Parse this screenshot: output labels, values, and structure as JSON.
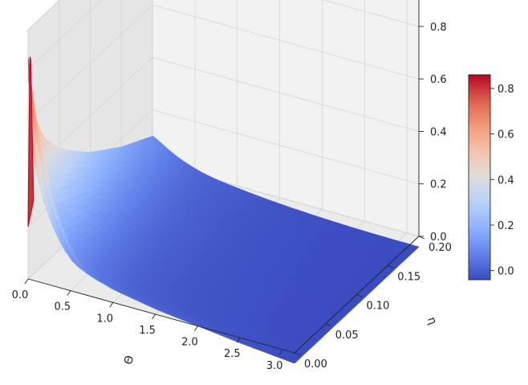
{
  "chart_data": {
    "type": "surface",
    "colormap": "coolwarm",
    "title": "",
    "xlabel": "Θ",
    "ylabel": "η",
    "zlabel": "",
    "xlim": [
      0.0,
      3.14
    ],
    "ylim": [
      0.0,
      0.2
    ],
    "zlim": [
      0.0,
      0.95
    ],
    "x_ticks": [
      "0.0",
      "0.5",
      "1.0",
      "1.5",
      "2.0",
      "2.5",
      "3.0"
    ],
    "y_ticks": [
      "0.00",
      "0.05",
      "0.10",
      "0.15",
      "0.20"
    ],
    "z_ticks": [
      "0.0",
      "0.2",
      "0.4",
      "0.6",
      "0.8"
    ],
    "colorbar": {
      "min": -0.04,
      "max": 0.86,
      "ticks": [
        "0.0",
        "0.2",
        "0.4",
        "0.6",
        "0.8"
      ]
    },
    "surface_profile": {
      "theta": [
        0.0,
        0.02,
        0.05,
        0.1,
        0.2,
        0.35,
        0.6,
        1.0,
        1.5,
        2.0,
        2.5,
        3.14
      ],
      "eta": [
        0.0,
        0.002,
        0.005,
        0.01,
        0.02,
        0.035,
        0.05,
        0.075,
        0.1,
        0.15,
        0.2
      ],
      "edge_theta0_vs_eta": [
        0.84,
        0.55,
        0.47,
        0.46,
        0.45,
        0.42,
        0.38,
        0.32,
        0.26,
        0.17,
        0.1
      ],
      "edge_eta_max_vs_theta": [
        0.1,
        0.07,
        0.05,
        0.04,
        0.025,
        0.015,
        0.005,
        0.0,
        -0.01,
        -0.02,
        -0.03,
        -0.04
      ],
      "edge_eta0_vs_theta": [
        0.84,
        0.45,
        0.36,
        0.28,
        0.2,
        0.14,
        0.09,
        0.05,
        0.02,
        0.0,
        -0.02,
        -0.04
      ],
      "edge_theta_max_vs_eta": [
        -0.04,
        -0.04,
        -0.04,
        -0.04,
        -0.04,
        -0.04,
        -0.04,
        -0.04,
        -0.04,
        -0.04,
        -0.04
      ]
    }
  }
}
